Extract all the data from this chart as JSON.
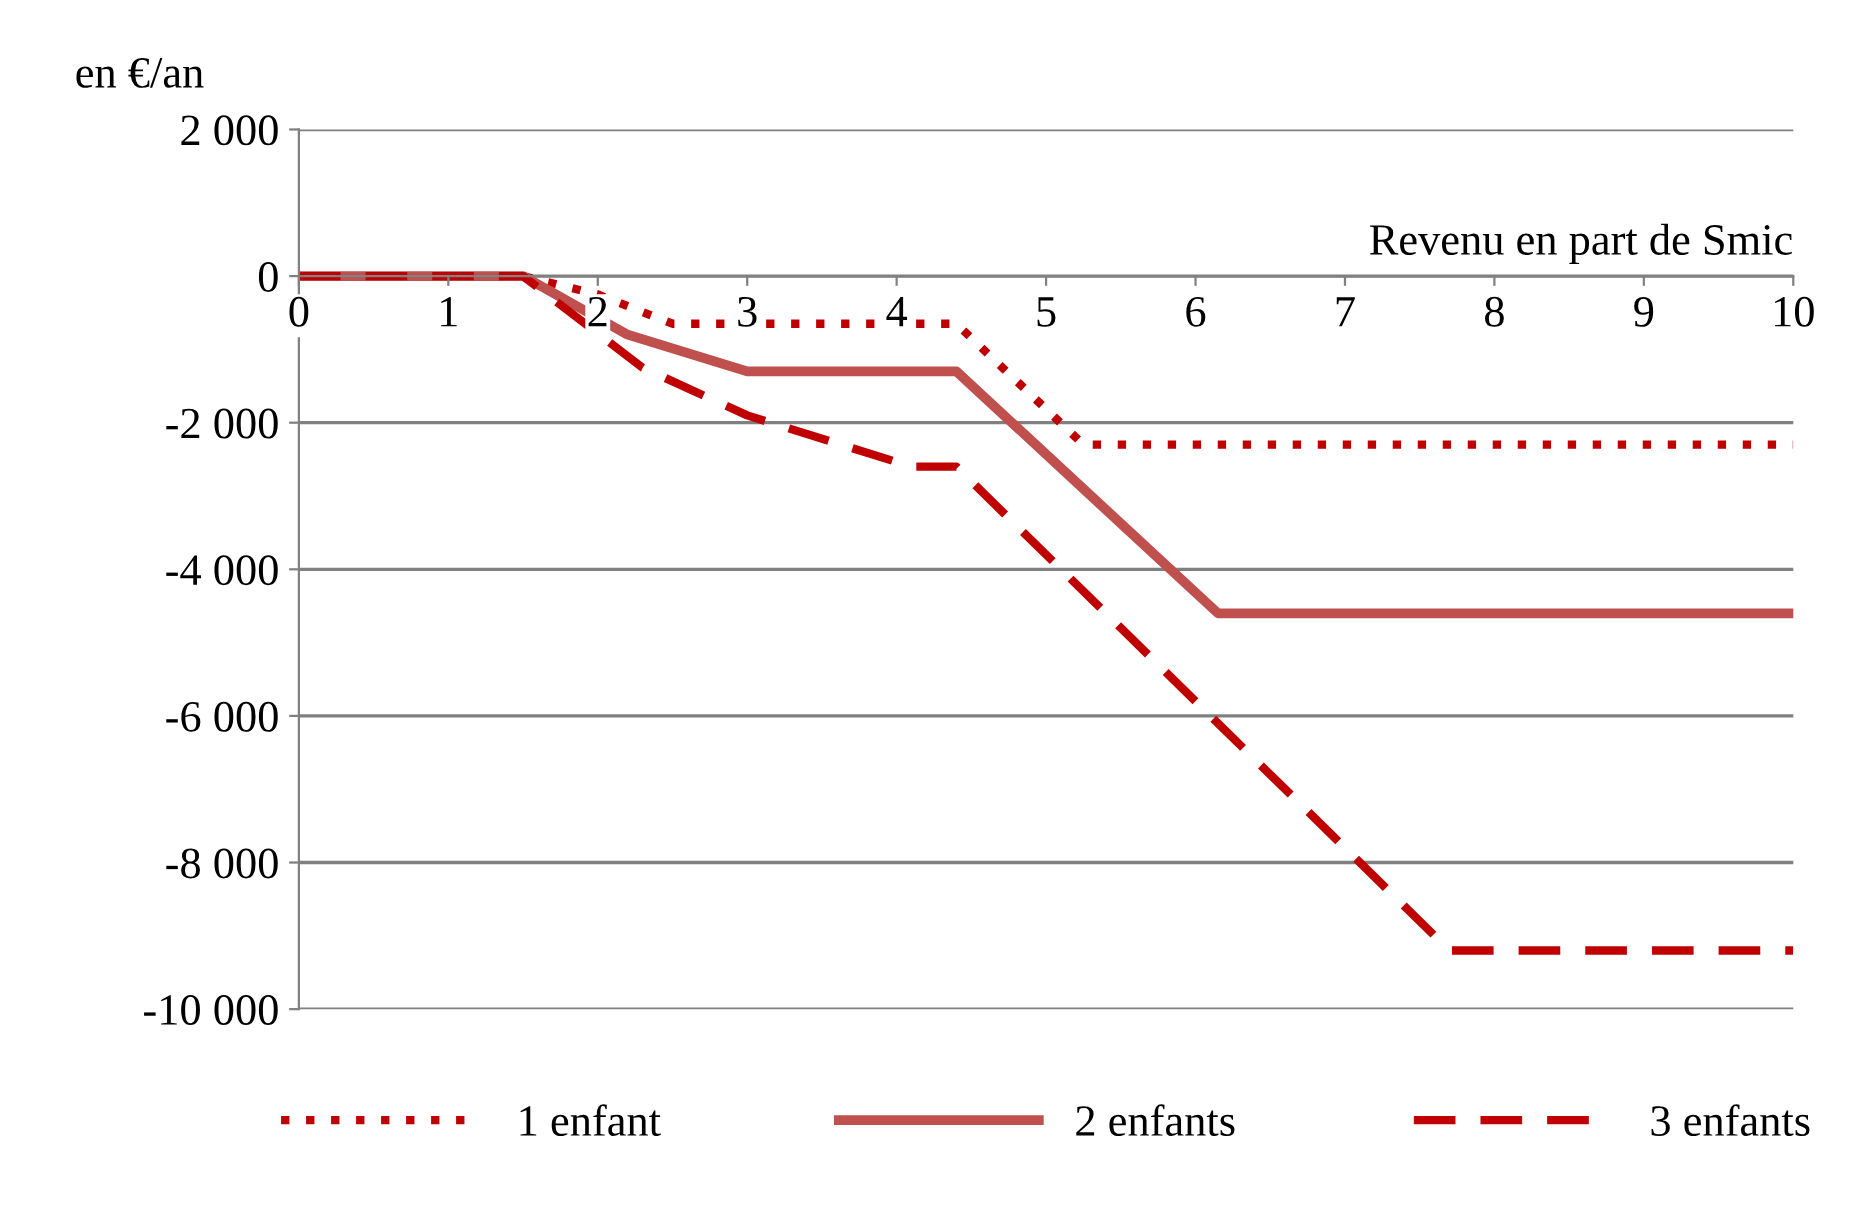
{
  "chart_data": {
    "type": "line",
    "xlabel": "Revenu en part de Smic",
    "ylabel": "en €/an",
    "xlim": [
      0,
      10
    ],
    "xticks": [
      0,
      1,
      2,
      3,
      4,
      5,
      6,
      7,
      8,
      9,
      10
    ],
    "ylim": [
      -10000,
      2000
    ],
    "yticks": [
      {
        "value": -10000,
        "label": "-10 000"
      },
      {
        "value": -8000,
        "label": "-8 000"
      },
      {
        "value": -6000,
        "label": "-6 000"
      },
      {
        "value": -4000,
        "label": "-4 000"
      },
      {
        "value": -2000,
        "label": "-2 000"
      },
      0,
      {
        "value": 2000,
        "label": "2 000"
      }
    ],
    "grid": "y",
    "legend": "bottom",
    "marker": "none",
    "series": [
      {
        "name": "1 enfant",
        "color": "#c00000",
        "line_style": "dotted",
        "x": [
          0,
          1.5,
          2.0,
          2.5,
          4.4,
          5.25,
          10
        ],
        "values": [
          0,
          0,
          -250,
          -650,
          -650,
          -2300,
          -2300
        ]
      },
      {
        "name": "2 enfants",
        "color": "#c0504d",
        "line_style": "solid",
        "x": [
          0,
          1.5,
          2.2,
          3.0,
          4.4,
          6.15,
          10
        ],
        "values": [
          0,
          0,
          -800,
          -1300,
          -1300,
          -4600,
          -4600
        ]
      },
      {
        "name": "3 enfants",
        "color": "#c00000",
        "line_style": "dashed",
        "x": [
          0,
          1.5,
          2.3,
          3.0,
          4.1,
          4.4,
          7.7,
          10
        ],
        "values": [
          0,
          0,
          -1250,
          -1900,
          -2600,
          -2600,
          -9200,
          -9200
        ]
      }
    ]
  }
}
